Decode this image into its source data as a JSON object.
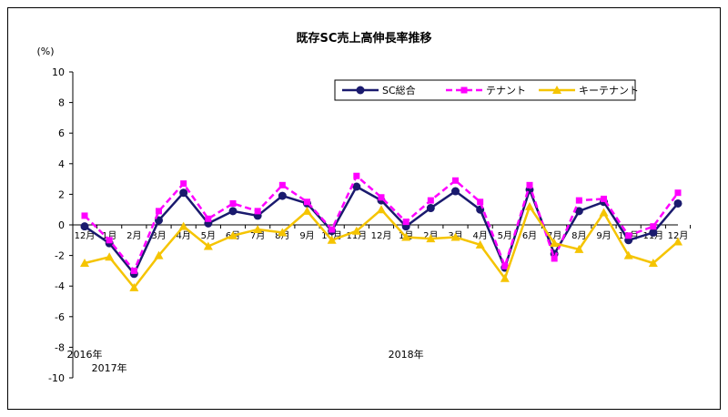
{
  "chart_data": {
    "type": "line",
    "title": "既存SC売上高伸長率推移",
    "ylabel": "(%)",
    "xlabel": "",
    "ylim": [
      -10,
      10
    ],
    "yticks": [
      10,
      8,
      6,
      4,
      2,
      0,
      -2,
      -4,
      -6,
      -8,
      -10
    ],
    "categories": [
      "12月",
      "1月",
      "2月",
      "3月",
      "4月",
      "5月",
      "6月",
      "7月",
      "8月",
      "9月",
      "10月",
      "11月",
      "12月",
      "1月",
      "2月",
      "3月",
      "4月",
      "5月",
      "6月",
      "7月",
      "8月",
      "9月",
      "10月",
      "11月",
      "12月"
    ],
    "year_labels": [
      {
        "label": "2016年",
        "index": 0
      },
      {
        "label": "2017年",
        "index": 1
      },
      {
        "label": "2018年",
        "index": 13
      }
    ],
    "legend_position": "top-right",
    "grid": false,
    "series": [
      {
        "name": "SC総合",
        "color": "#1a1a6e",
        "style": "solid",
        "marker": "circle",
        "values": [
          -0.1,
          -1.2,
          -3.2,
          0.3,
          2.1,
          0.1,
          0.9,
          0.6,
          1.9,
          1.4,
          -0.4,
          2.5,
          1.6,
          -0.1,
          1.1,
          2.2,
          1.0,
          -2.8,
          2.3,
          -1.9,
          0.9,
          1.5,
          -1.0,
          -0.5,
          1.4
        ]
      },
      {
        "name": "テナント",
        "color": "#ff00ff",
        "style": "dashed",
        "marker": "square",
        "values": [
          0.6,
          -1.0,
          -3.0,
          0.9,
          2.7,
          0.4,
          1.4,
          0.9,
          2.6,
          1.5,
          -0.3,
          3.2,
          1.8,
          0.2,
          1.6,
          2.9,
          1.5,
          -2.7,
          2.6,
          -2.2,
          1.6,
          1.7,
          -0.7,
          -0.1,
          2.1
        ]
      },
      {
        "name": "キーテナント",
        "color": "#f5c400",
        "style": "solid",
        "marker": "triangle",
        "values": [
          -2.5,
          -2.1,
          -4.1,
          -2.0,
          -0.1,
          -1.4,
          -0.7,
          -0.3,
          -0.5,
          0.9,
          -1.0,
          -0.4,
          1.0,
          -0.8,
          -0.9,
          -0.8,
          -1.3,
          -3.5,
          1.2,
          -1.2,
          -1.6,
          0.8,
          -2.0,
          -2.5,
          -1.1
        ]
      }
    ]
  }
}
